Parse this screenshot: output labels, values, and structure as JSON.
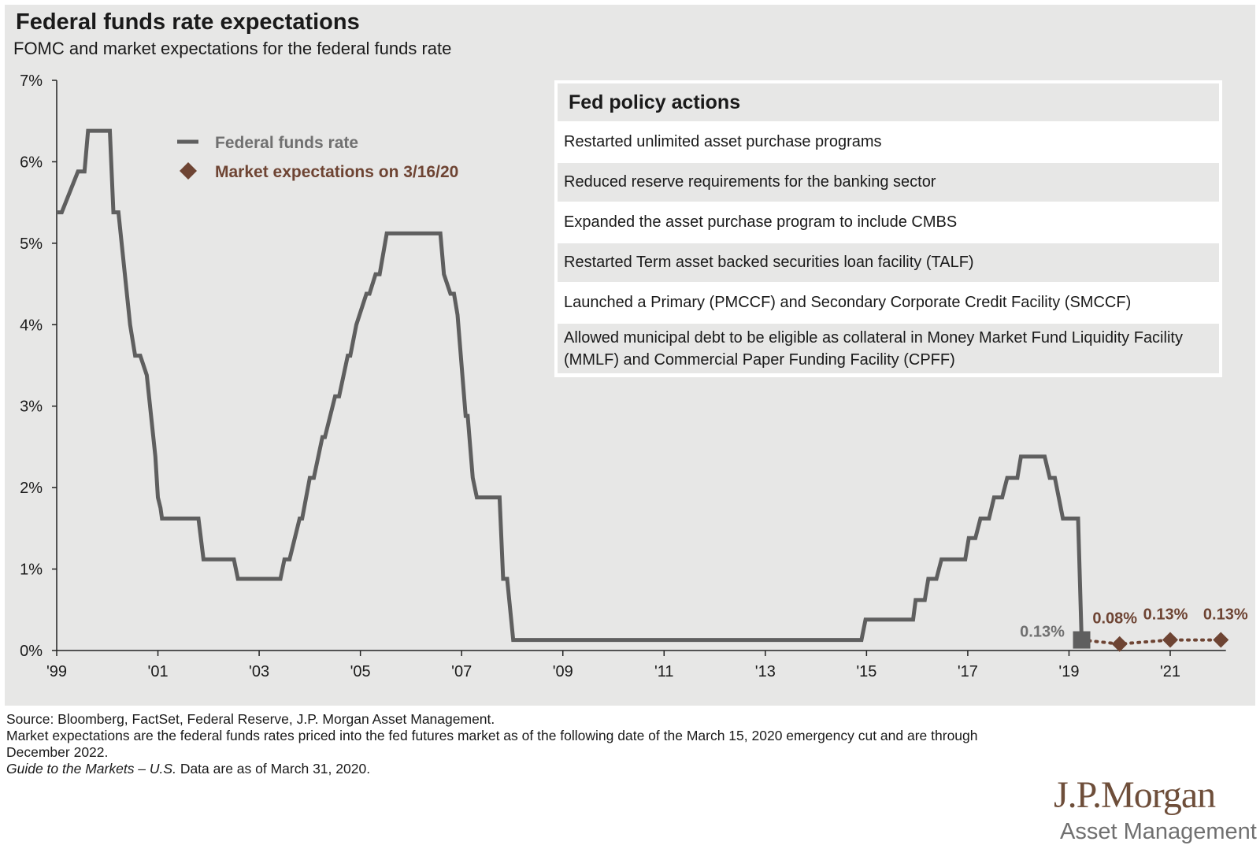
{
  "header": {
    "title": "Federal funds rate expectations",
    "subtitle": "FOMC and market expectations for the federal funds rate"
  },
  "colors": {
    "line": "#5f5f5f",
    "expectation": "#6e4433",
    "panel": "#e7e7e6",
    "axis": "#222222"
  },
  "policy": {
    "heading": "Fed policy actions",
    "items": [
      "Restarted unlimited asset purchase programs",
      "Reduced reserve requirements for the banking sector",
      "Expanded the asset purchase program to include CMBS",
      "Restarted Term asset backed securities loan facility (TALF)",
      "Launched a Primary (PMCCF) and Secondary Corporate Credit Facility (SMCCF)",
      "Allowed municipal debt to be eligible as collateral in Money Market Fund Liquidity Facility (MMLF) and Commercial Paper Funding Facility (CPFF)"
    ]
  },
  "chart_data": {
    "type": "line",
    "title": "Federal funds rate expectations",
    "subtitle": "FOMC and market expectations for the federal funds rate",
    "xlabel": "",
    "ylabel": "",
    "xlim": [
      1999,
      2022.1
    ],
    "ylim": [
      0,
      7
    ],
    "y_ticks": [
      "0%",
      "1%",
      "2%",
      "3%",
      "4%",
      "5%",
      "6%",
      "7%"
    ],
    "x_ticks": [
      {
        "x": 1999,
        "label": "'99"
      },
      {
        "x": 2001,
        "label": "'01"
      },
      {
        "x": 2003,
        "label": "'03"
      },
      {
        "x": 2005,
        "label": "'05"
      },
      {
        "x": 2007,
        "label": "'07"
      },
      {
        "x": 2009,
        "label": "'09"
      },
      {
        "x": 2011,
        "label": "'11"
      },
      {
        "x": 2013,
        "label": "'13"
      },
      {
        "x": 2015,
        "label": "'15"
      },
      {
        "x": 2017,
        "label": "'17"
      },
      {
        "x": 2019,
        "label": "'19"
      },
      {
        "x": 2021,
        "label": "'21"
      }
    ],
    "legend": [
      {
        "name": "Federal funds rate",
        "marker": "line"
      },
      {
        "name": "Market expectations on 3/16/20",
        "marker": "diamond"
      }
    ],
    "series": [
      {
        "name": "Federal funds rate",
        "points": [
          [
            1999.0,
            5.38
          ],
          [
            1999.1,
            5.38
          ],
          [
            1999.42,
            5.88
          ],
          [
            1999.55,
            5.88
          ],
          [
            1999.62,
            6.38
          ],
          [
            1999.98,
            6.38
          ],
          [
            2000.05,
            6.38
          ],
          [
            2000.12,
            5.38
          ],
          [
            2000.22,
            5.38
          ],
          [
            2000.45,
            4.0
          ],
          [
            2000.55,
            3.62
          ],
          [
            2000.65,
            3.62
          ],
          [
            2000.78,
            3.38
          ],
          [
            2000.95,
            2.38
          ],
          [
            2001.0,
            1.88
          ],
          [
            2001.05,
            1.75
          ],
          [
            2001.08,
            1.62
          ],
          [
            2001.8,
            1.62
          ],
          [
            2001.9,
            1.12
          ],
          [
            2002.5,
            1.12
          ],
          [
            2002.58,
            0.88
          ],
          [
            2003.42,
            0.88
          ],
          [
            2003.5,
            1.12
          ],
          [
            2003.6,
            1.12
          ],
          [
            2003.8,
            1.62
          ],
          [
            2003.85,
            1.62
          ],
          [
            2004.0,
            2.12
          ],
          [
            2004.08,
            2.12
          ],
          [
            2004.25,
            2.62
          ],
          [
            2004.3,
            2.62
          ],
          [
            2004.5,
            3.12
          ],
          [
            2004.58,
            3.12
          ],
          [
            2004.75,
            3.62
          ],
          [
            2004.8,
            3.62
          ],
          [
            2004.92,
            4.0
          ],
          [
            2005.12,
            4.38
          ],
          [
            2005.18,
            4.38
          ],
          [
            2005.3,
            4.62
          ],
          [
            2005.38,
            4.62
          ],
          [
            2005.52,
            5.12
          ],
          [
            2006.58,
            5.12
          ],
          [
            2006.65,
            4.62
          ],
          [
            2006.78,
            4.38
          ],
          [
            2006.85,
            4.38
          ],
          [
            2006.92,
            4.12
          ],
          [
            2007.08,
            2.88
          ],
          [
            2007.12,
            2.88
          ],
          [
            2007.22,
            2.12
          ],
          [
            2007.3,
            1.88
          ],
          [
            2007.75,
            1.88
          ],
          [
            2007.82,
            0.88
          ],
          [
            2007.9,
            0.88
          ],
          [
            2008.02,
            0.13
          ],
          [
            2014.9,
            0.13
          ],
          [
            2014.98,
            0.38
          ],
          [
            2015.92,
            0.38
          ],
          [
            2015.97,
            0.62
          ],
          [
            2016.15,
            0.62
          ],
          [
            2016.22,
            0.88
          ],
          [
            2016.38,
            0.88
          ],
          [
            2016.48,
            1.12
          ],
          [
            2016.95,
            1.12
          ],
          [
            2017.02,
            1.38
          ],
          [
            2017.15,
            1.38
          ],
          [
            2017.25,
            1.62
          ],
          [
            2017.42,
            1.62
          ],
          [
            2017.52,
            1.88
          ],
          [
            2017.68,
            1.88
          ],
          [
            2017.78,
            2.12
          ],
          [
            2017.98,
            2.12
          ],
          [
            2018.05,
            2.38
          ],
          [
            2018.52,
            2.38
          ],
          [
            2018.62,
            2.12
          ],
          [
            2018.72,
            2.12
          ],
          [
            2018.88,
            1.62
          ],
          [
            2019.18,
            1.62
          ],
          [
            2019.25,
            0.13
          ]
        ]
      },
      {
        "name": "Market expectations on 3/16/20",
        "points": [
          [
            2019.25,
            0.13
          ],
          [
            2020.0,
            0.08
          ],
          [
            2021.0,
            0.13
          ],
          [
            2022.0,
            0.13
          ]
        ]
      }
    ],
    "annotations": [
      {
        "x": 2019.25,
        "y": 0.13,
        "label": "0.13%",
        "color": "#707070"
      },
      {
        "x": 2020.0,
        "y": 0.08,
        "label": "0.08%",
        "color": "#6e4433"
      },
      {
        "x": 2021.0,
        "y": 0.13,
        "label": "0.13%",
        "color": "#6e4433"
      },
      {
        "x": 2022.0,
        "y": 0.13,
        "label": "0.13%",
        "color": "#6e4433"
      }
    ]
  },
  "footer": {
    "source": "Source: Bloomberg, FactSet, Federal Reserve, J.P. Morgan Asset Management.",
    "note": "Market expectations are the federal funds rates priced into the fed futures market as of the following date of the March 15, 2020 emergency cut and are through December 2022.",
    "guide": "Guide to the Markets – U.S.",
    "date": "Data are as of March 31, 2020."
  },
  "logo": {
    "name": "J.P.Morgan",
    "division": "Asset Management"
  }
}
